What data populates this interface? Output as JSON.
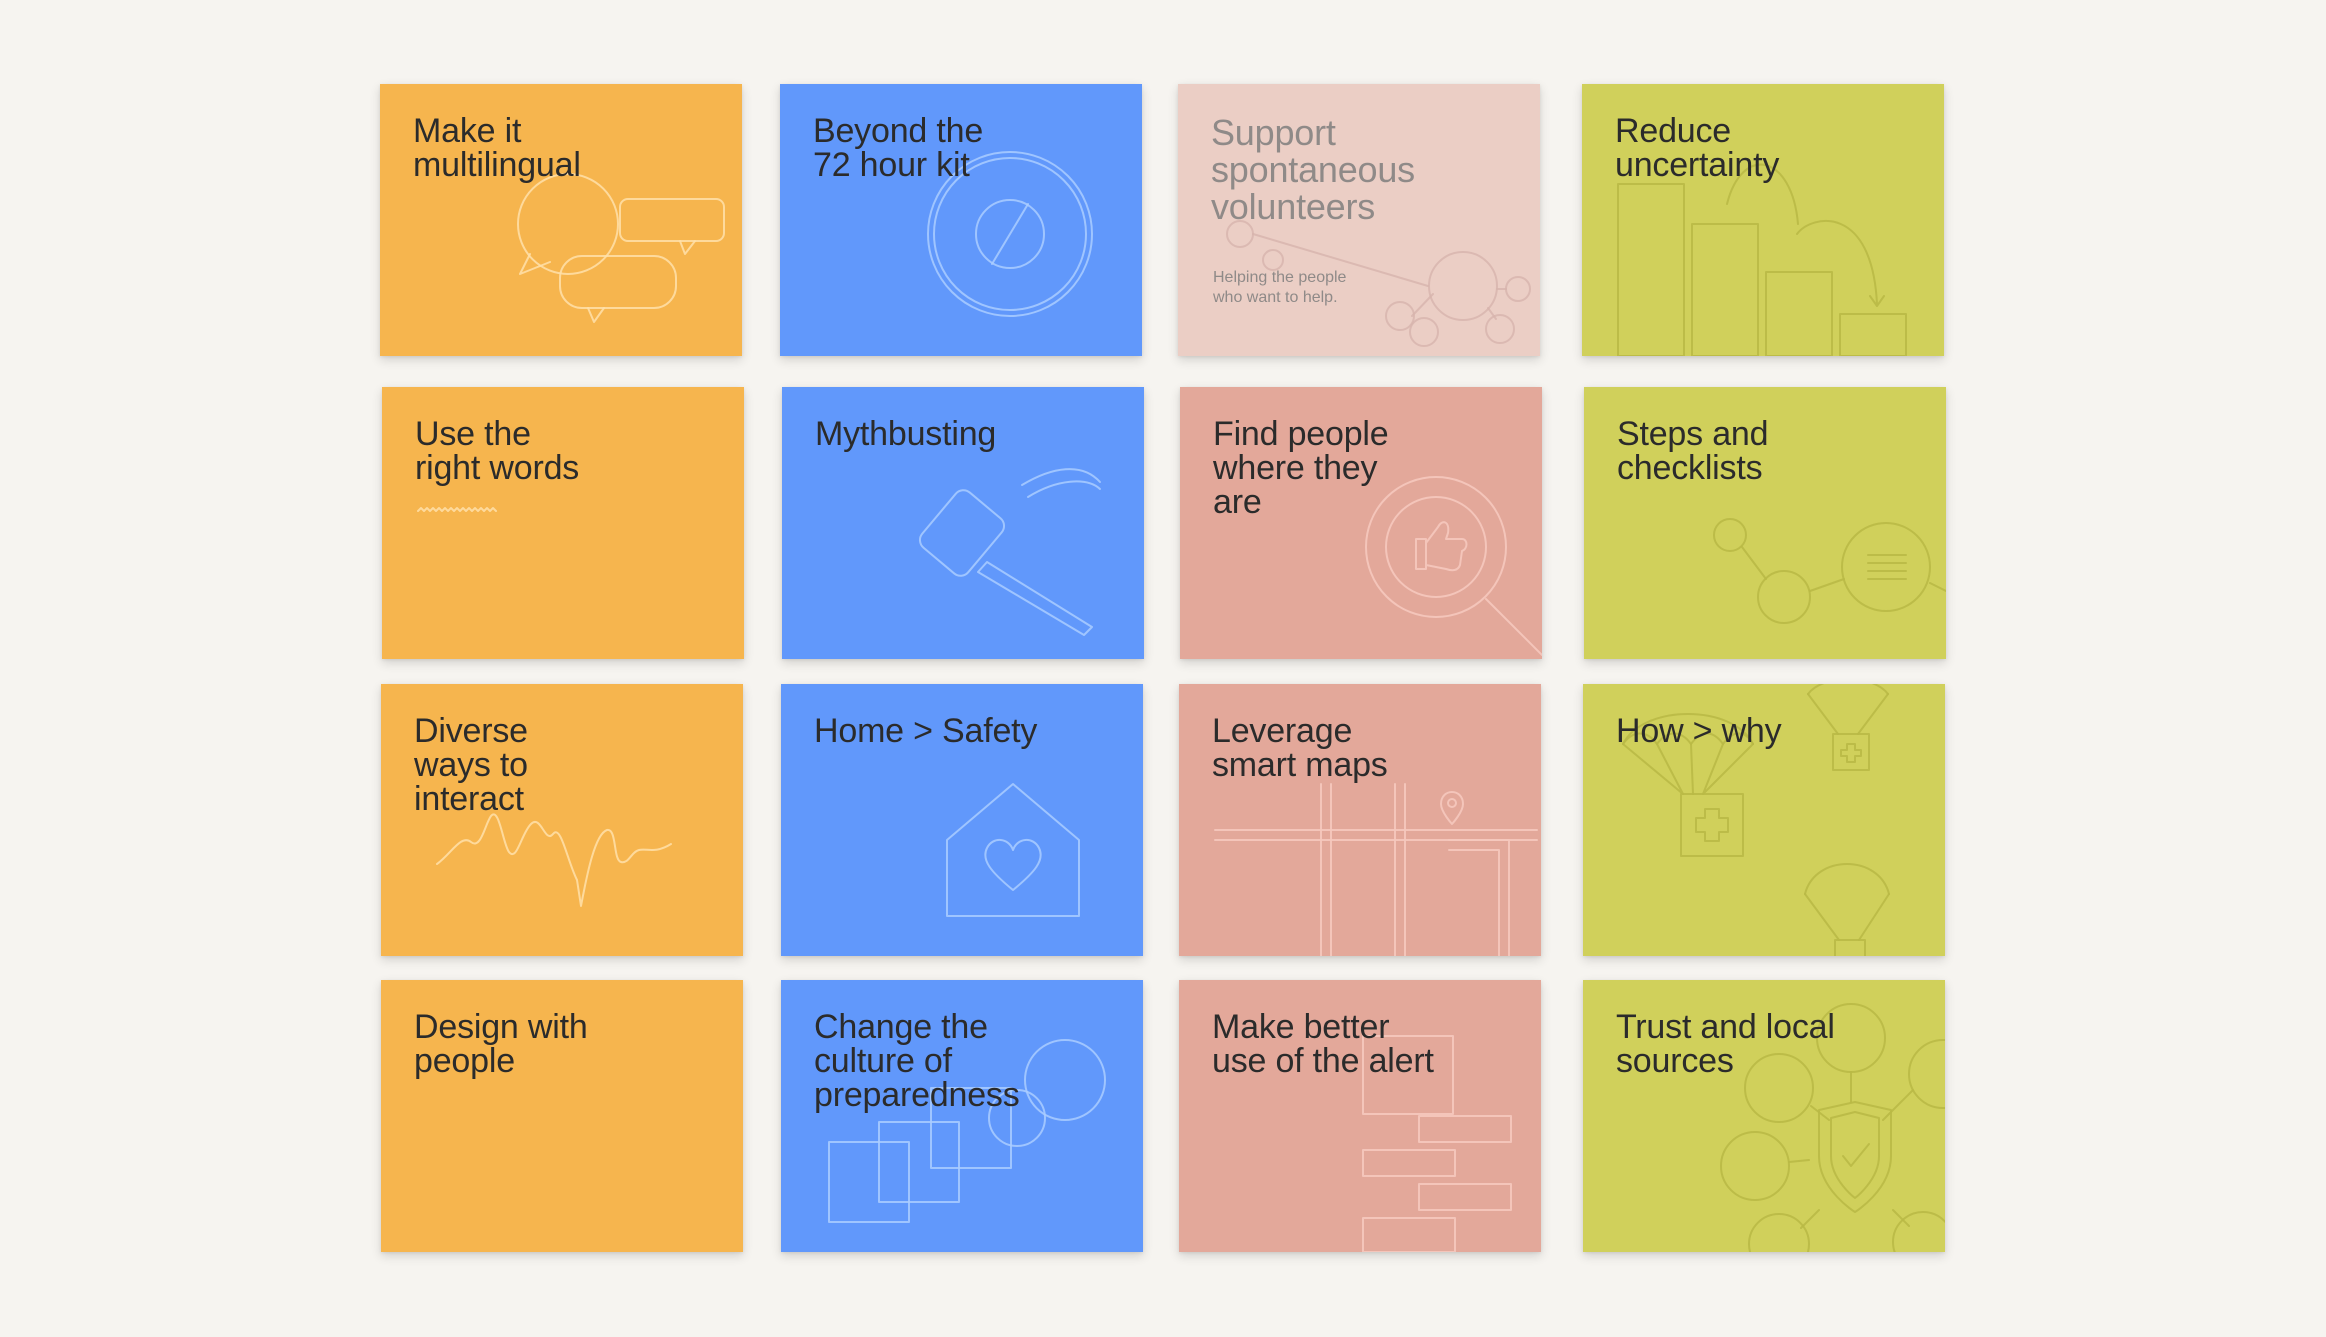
{
  "board": {
    "cards": [
      {
        "title": "Make it\nmultilingual",
        "icon": "speech-bubbles-icon",
        "color": "#f6b54e"
      },
      {
        "title": "Beyond the\n72 hour kit",
        "icon": "compass-icon",
        "color": "#6198fb"
      },
      {
        "title": "Support\nspontaneous\nvolunteers",
        "subtitle": "Helping the people\nwho want to help.",
        "icon": "network-nodes-icon",
        "color": "#ebcec5"
      },
      {
        "title": "Reduce\nuncertainty",
        "icon": "bar-steps-icon",
        "color": "#d0d05b"
      },
      {
        "title": "Use the\nright words",
        "icon": "squiggle-underline-icon",
        "color": "#f6b54e"
      },
      {
        "title": "Mythbusting",
        "icon": "hammer-icon",
        "color": "#6198fb"
      },
      {
        "title": "Find people\nwhere they\nare",
        "icon": "magnifier-thumbs-up-icon",
        "color": "#e3a89a"
      },
      {
        "title": "Steps and\nchecklists",
        "icon": "checklist-network-icon",
        "color": "#d0d05b"
      },
      {
        "title": "Diverse\nways to\ninteract",
        "icon": "waveform-icon",
        "color": "#f6b54e"
      },
      {
        "title": "Home > Safety",
        "icon": "house-heart-icon",
        "color": "#6198fb"
      },
      {
        "title": "Leverage\nsmart maps",
        "icon": "map-pin-icon",
        "color": "#e3a89a"
      },
      {
        "title": "How > why",
        "icon": "parachute-aid-icon",
        "color": "#d0d05b"
      },
      {
        "title": "Design with\npeople",
        "icon": "none",
        "color": "#f6b54e"
      },
      {
        "title": "Change the\nculture of\npreparedness",
        "icon": "overlapping-shapes-icon",
        "color": "#6198fb"
      },
      {
        "title": "Make better\nuse of the alert",
        "icon": "brick-stack-icon",
        "color": "#e3a89a"
      },
      {
        "title": "Trust and local\nsources",
        "icon": "shield-network-icon",
        "color": "#d0d05b"
      }
    ]
  }
}
